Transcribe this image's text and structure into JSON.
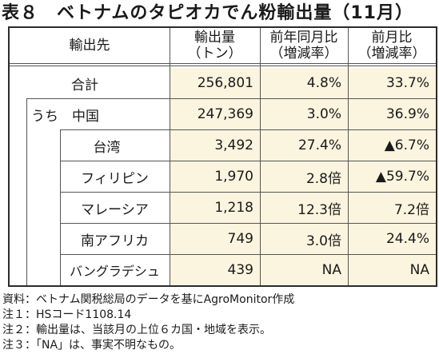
{
  "title": "表８　ベトナムのタピオカでん粉輸出量（11月）",
  "headers": {
    "destination": "輸出先",
    "volume": [
      "輸出量",
      "（トン）"
    ],
    "yoy": [
      "前年同月比",
      "（増減率）"
    ],
    "mom": [
      "前月比",
      "（増減率）"
    ]
  },
  "rows": [
    {
      "label": "合計",
      "volume": "256,801",
      "yoy": "4.8%",
      "mom": "33.7%"
    },
    {
      "label": "うち　中国",
      "volume": "247,369",
      "yoy": "3.0%",
      "mom": "36.9%"
    },
    {
      "label": "台湾",
      "volume": "3,492",
      "yoy": "27.4%",
      "mom": "▲6.7%"
    },
    {
      "label": "フィリピン",
      "volume": "1,970",
      "yoy": "2.8倍",
      "mom": "▲59.7%"
    },
    {
      "label": "マレーシア",
      "volume": "1,218",
      "yoy": "12.3倍",
      "mom": "7.2倍"
    },
    {
      "label": "南アフリカ",
      "volume": "749",
      "yoy": "3.0倍",
      "mom": "24.4%"
    },
    {
      "label": "バングラデシュ",
      "volume": "439",
      "yoy": "NA",
      "mom": "NA"
    }
  ],
  "notes": [
    "資料：ベトナム関税総局のデータを基にAgroMonitor作成",
    "注１：HSコード1108.14",
    "注２：輸出量は、当該月の上位６カ国・地域を表示。",
    "注３：「NA」は、事実不明なもの。"
  ]
}
